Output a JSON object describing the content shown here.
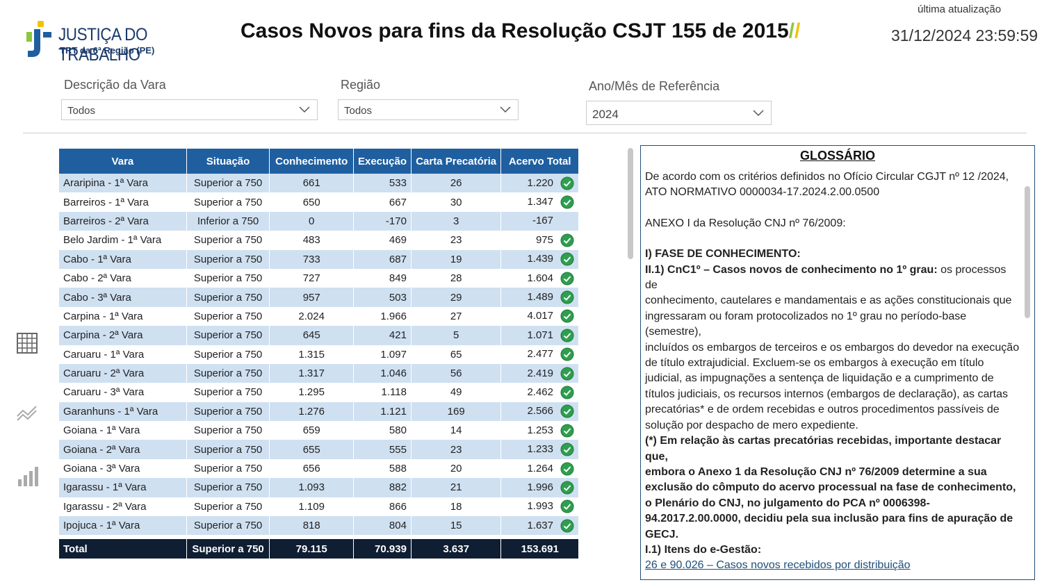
{
  "header": {
    "logo_name": "JUSTIÇA DO TRABALHO",
    "logo_sub": "TRT da 6ª Região (PE)",
    "title": "Casos Novos para fins da Resolução CSJT 155 de 2015",
    "title_slash_1": "/",
    "title_slash_2": "/",
    "update_label": "última atualização",
    "update_value": "31/12/2024 23:59:59"
  },
  "filters": [
    {
      "label": "Descrição da Vara",
      "value": "Todos",
      "icon": "chevron-down-icon"
    },
    {
      "label": "Região",
      "value": "Todos",
      "icon": "chevron-down-icon"
    },
    {
      "label": "Ano/Mês de Referência",
      "value": "2024",
      "icon": "chevron-down-icon"
    }
  ],
  "nav": [
    "table-grid-icon",
    "line-chart-icon",
    "bar-chart-icon"
  ],
  "table": {
    "columns": [
      "Vara",
      "Situação",
      "Conhecimento",
      "Execução",
      "Carta Precatória",
      "Acervo Total"
    ],
    "rows": [
      {
        "vara": "Araripina - 1ª Vara",
        "sit": "Superior a 750",
        "con": "661",
        "exe": "533",
        "cp": "26",
        "acv": "1.220",
        "ok": true
      },
      {
        "vara": "Barreiros - 1ª Vara",
        "sit": "Superior a 750",
        "con": "650",
        "exe": "667",
        "cp": "30",
        "acv": "1.347",
        "ok": true
      },
      {
        "vara": "Barreiros - 2ª Vara",
        "sit": "Inferior a 750",
        "con": "0",
        "exe": "-170",
        "cp": "3",
        "acv": "-167",
        "ok": false
      },
      {
        "vara": "Belo Jardim - 1ª Vara",
        "sit": "Superior a 750",
        "con": "483",
        "exe": "469",
        "cp": "23",
        "acv": "975",
        "ok": true
      },
      {
        "vara": "Cabo - 1ª Vara",
        "sit": "Superior a 750",
        "con": "733",
        "exe": "687",
        "cp": "19",
        "acv": "1.439",
        "ok": true
      },
      {
        "vara": "Cabo - 2ª Vara",
        "sit": "Superior a 750",
        "con": "727",
        "exe": "849",
        "cp": "28",
        "acv": "1.604",
        "ok": true
      },
      {
        "vara": "Cabo - 3ª Vara",
        "sit": "Superior a 750",
        "con": "957",
        "exe": "503",
        "cp": "29",
        "acv": "1.489",
        "ok": true
      },
      {
        "vara": "Carpina - 1ª Vara",
        "sit": "Superior a 750",
        "con": "2.024",
        "exe": "1.966",
        "cp": "27",
        "acv": "4.017",
        "ok": true
      },
      {
        "vara": "Carpina - 2ª Vara",
        "sit": "Superior a 750",
        "con": "645",
        "exe": "421",
        "cp": "5",
        "acv": "1.071",
        "ok": true
      },
      {
        "vara": "Caruaru - 1ª Vara",
        "sit": "Superior a 750",
        "con": "1.315",
        "exe": "1.097",
        "cp": "65",
        "acv": "2.477",
        "ok": true
      },
      {
        "vara": "Caruaru - 2ª Vara",
        "sit": "Superior a 750",
        "con": "1.317",
        "exe": "1.046",
        "cp": "56",
        "acv": "2.419",
        "ok": true
      },
      {
        "vara": "Caruaru - 3ª Vara",
        "sit": "Superior a 750",
        "con": "1.295",
        "exe": "1.118",
        "cp": "49",
        "acv": "2.462",
        "ok": true
      },
      {
        "vara": "Garanhuns - 1ª Vara",
        "sit": "Superior a 750",
        "con": "1.276",
        "exe": "1.121",
        "cp": "169",
        "acv": "2.566",
        "ok": true
      },
      {
        "vara": "Goiana - 1ª Vara",
        "sit": "Superior a 750",
        "con": "659",
        "exe": "580",
        "cp": "14",
        "acv": "1.253",
        "ok": true
      },
      {
        "vara": "Goiana - 2ª Vara",
        "sit": "Superior a 750",
        "con": "655",
        "exe": "555",
        "cp": "23",
        "acv": "1.233",
        "ok": true
      },
      {
        "vara": "Goiana - 3ª Vara",
        "sit": "Superior a 750",
        "con": "656",
        "exe": "588",
        "cp": "20",
        "acv": "1.264",
        "ok": true
      },
      {
        "vara": "Igarassu - 1ª Vara",
        "sit": "Superior a 750",
        "con": "1.093",
        "exe": "882",
        "cp": "21",
        "acv": "1.996",
        "ok": true
      },
      {
        "vara": "Igarassu - 2ª Vara",
        "sit": "Superior a 750",
        "con": "1.109",
        "exe": "866",
        "cp": "18",
        "acv": "1.993",
        "ok": true
      },
      {
        "vara": "Ipojuca - 1ª Vara",
        "sit": "Superior a 750",
        "con": "818",
        "exe": "804",
        "cp": "15",
        "acv": "1.637",
        "ok": true
      }
    ],
    "total": {
      "vara": "Total",
      "sit": "Superior a 750",
      "con": "79.115",
      "exe": "70.939",
      "cp": "3.637",
      "acv": "153.691"
    },
    "ok_icon": "check-circle-icon",
    "ok_color": "#2e9e4f",
    "header_color": "#1f5fa0"
  },
  "glossary": {
    "title": "GLOSSÁRIO",
    "p1": "De acordo com os critérios definidos no Ofício Circular CGJT nº 12 /2024, ATO NORMATIVO 0000034-17.2024.2.00.0500",
    "p2": "ANEXO I da Resolução CNJ nº 76/2009:",
    "h1": "I) FASE DE CONHECIMENTO:",
    "h2": "II.1) CnC1º – Casos novos de conhecimento no 1º grau:",
    "p3a": " os processos de",
    "p3b": "conhecimento, cautelares e mandamentais e as ações constitucionais que ingressaram ou foram protocolizados no 1º grau no período-base (semestre),",
    "p3c": "incluídos os embargos de terceiros e os embargos do devedor na execução de título extrajudicial. Excluem-se os embargos à execução em título judicial, as impugnações a sentença de liquidação e a cumprimento de títulos judiciais, os recursos internos (embargos de declaração), as cartas  precatórias* e de ordem recebidas e outros procedimentos passíveis de solução por despacho de mero expediente.",
    "b1": "(*) Em relação às cartas precatórias recebidas, importante destacar que,",
    "b2": "embora o Anexo 1 da Resolução CNJ nº 76/2009 determine a sua exclusão do cômputo do acervo processual na fase de conhecimento, o Plenário do CNJ, no julgamento do PCA nº 0006398-94.2017.2.00.0000, decidiu pela sua inclusão para fins de apuração de GECJ.",
    "b3": "I.1) Itens do e-Gestão:",
    "link": "26 e 90.026 – Casos novos recebidos por distribuição"
  }
}
